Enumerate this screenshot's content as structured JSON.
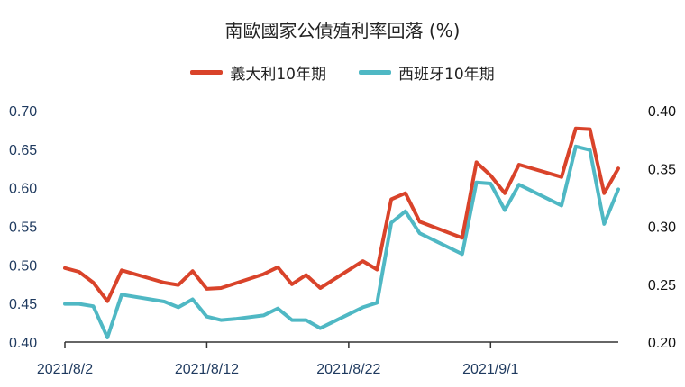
{
  "chart_data": {
    "type": "line",
    "title": "南歐國家公債殖利率回落 (%)",
    "x_tick_labels": [
      "2021/8/2",
      "2021/8/12",
      "2021/8/22",
      "2021/9/1"
    ],
    "x_tick_values": [
      "2021-08-02",
      "2021-08-12",
      "2021-08-22",
      "2021-09-01"
    ],
    "xlim": [
      "2021-08-02",
      "2021-09-10"
    ],
    "y_left": {
      "lim": [
        0.4,
        0.7
      ],
      "ticks": [
        "0.70",
        "0.65",
        "0.60",
        "0.55",
        "0.50",
        "0.45",
        "0.40"
      ]
    },
    "y_right": {
      "lim": [
        0.2,
        0.4
      ],
      "ticks": [
        "0.40",
        "0.35",
        "0.30",
        "0.25",
        "0.20"
      ]
    },
    "legend_position": "top-center",
    "grid": false,
    "series": [
      {
        "name": "義大利10年期",
        "axis": "left",
        "color": "#d9432a",
        "x": [
          "2021-08-02",
          "2021-08-03",
          "2021-08-04",
          "2021-08-05",
          "2021-08-06",
          "2021-08-09",
          "2021-08-10",
          "2021-08-11",
          "2021-08-12",
          "2021-08-13",
          "2021-08-14",
          "2021-08-16",
          "2021-08-17",
          "2021-08-18",
          "2021-08-19",
          "2021-08-20",
          "2021-08-23",
          "2021-08-24",
          "2021-08-25",
          "2021-08-26",
          "2021-08-27",
          "2021-08-30",
          "2021-08-31",
          "2021-09-01",
          "2021-09-02",
          "2021-09-03",
          "2021-09-06",
          "2021-09-07",
          "2021-09-08",
          "2021-09-09",
          "2021-09-10"
        ],
        "y": [
          0.496,
          0.491,
          0.477,
          0.453,
          0.493,
          0.477,
          0.474,
          0.492,
          0.469,
          0.47,
          0.476,
          0.488,
          0.497,
          0.475,
          0.487,
          0.47,
          0.505,
          0.494,
          0.585,
          0.593,
          0.556,
          0.535,
          0.633,
          0.616,
          0.593,
          0.63,
          0.614,
          0.677,
          0.676,
          0.593,
          0.625
        ]
      },
      {
        "name": "西班牙10年期",
        "axis": "right",
        "color": "#4fb8c4",
        "x": [
          "2021-08-02",
          "2021-08-03",
          "2021-08-04",
          "2021-08-05",
          "2021-08-06",
          "2021-08-09",
          "2021-08-10",
          "2021-08-11",
          "2021-08-12",
          "2021-08-13",
          "2021-08-14",
          "2021-08-16",
          "2021-08-17",
          "2021-08-18",
          "2021-08-19",
          "2021-08-20",
          "2021-08-23",
          "2021-08-24",
          "2021-08-25",
          "2021-08-26",
          "2021-08-27",
          "2021-08-30",
          "2021-08-31",
          "2021-09-01",
          "2021-09-02",
          "2021-09-03",
          "2021-09-06",
          "2021-09-07",
          "2021-09-08",
          "2021-09-09",
          "2021-09-10"
        ],
        "y": [
          0.233,
          0.233,
          0.231,
          0.204,
          0.241,
          0.235,
          0.23,
          0.237,
          0.222,
          0.219,
          0.22,
          0.223,
          0.229,
          0.219,
          0.219,
          0.212,
          0.23,
          0.234,
          0.303,
          0.313,
          0.294,
          0.276,
          0.338,
          0.337,
          0.314,
          0.336,
          0.318,
          0.369,
          0.366,
          0.302,
          0.332
        ]
      }
    ]
  }
}
